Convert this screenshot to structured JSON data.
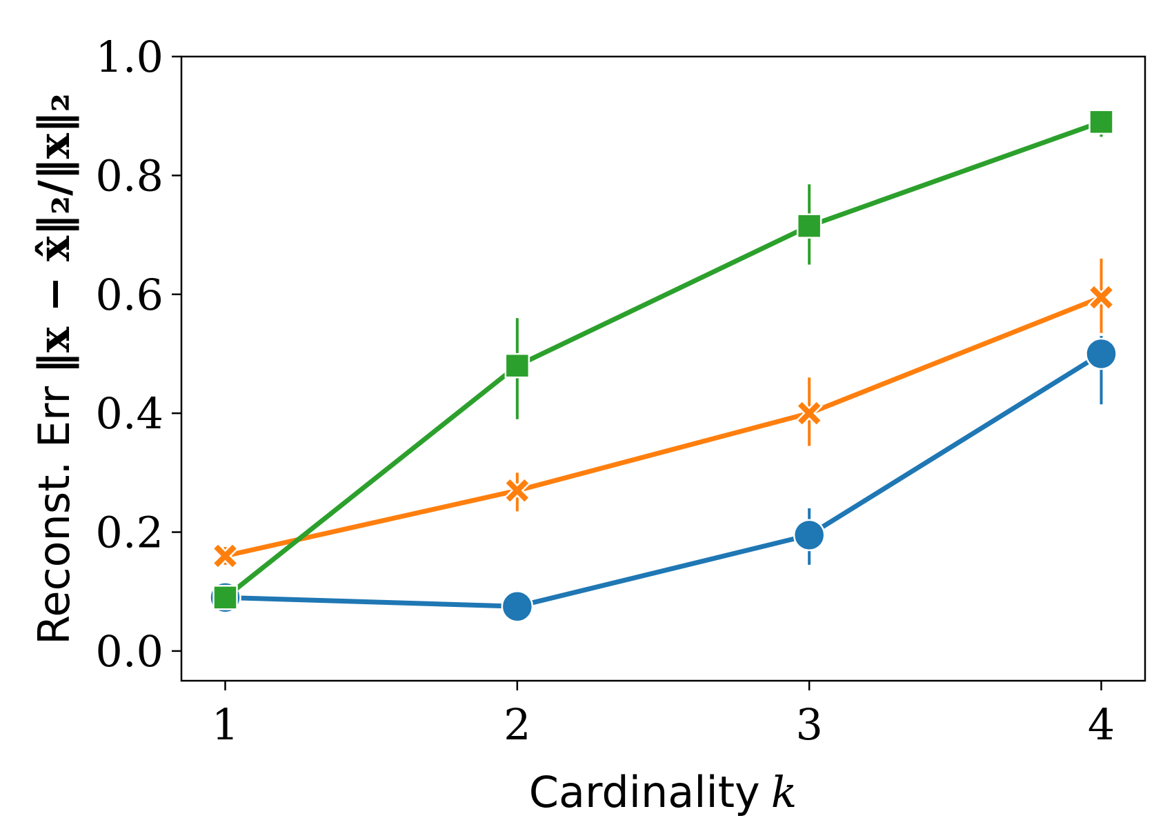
{
  "chart_data": {
    "type": "line",
    "title": "",
    "xlabel": "Cardinality",
    "xlabel_var": "k",
    "ylabel": "Reconst. Err",
    "ylabel_formula": "‖x − x̂‖₂/‖x‖₂",
    "x": [
      1,
      2,
      3,
      4
    ],
    "xticks": [
      "1",
      "2",
      "3",
      "4"
    ],
    "xlim": [
      0.85,
      4.15
    ],
    "yticks": [
      "0.0",
      "0.2",
      "0.4",
      "0.6",
      "0.8",
      "1.0"
    ],
    "ytick_values": [
      0.0,
      0.2,
      0.4,
      0.6,
      0.8,
      1.0
    ],
    "ylim": [
      -0.05,
      1.0
    ],
    "grid": false,
    "legend": null,
    "series": [
      {
        "color": "#1f77b4",
        "marker": "circle",
        "values": [
          0.09,
          0.075,
          0.195,
          0.5
        ],
        "err_low": [
          0.085,
          0.072,
          0.145,
          0.415
        ],
        "err_high": [
          0.095,
          0.078,
          0.24,
          0.53
        ]
      },
      {
        "color": "#ff7f0e",
        "marker": "x-filled",
        "values": [
          0.16,
          0.27,
          0.4,
          0.595
        ],
        "err_low": [
          0.145,
          0.235,
          0.345,
          0.535
        ],
        "err_high": [
          0.175,
          0.3,
          0.46,
          0.66
        ]
      },
      {
        "color": "#2ca02c",
        "marker": "square",
        "values": [
          0.09,
          0.48,
          0.715,
          0.89
        ],
        "err_low": [
          0.085,
          0.39,
          0.65,
          0.865
        ],
        "err_high": [
          0.095,
          0.56,
          0.785,
          0.91
        ]
      }
    ]
  }
}
